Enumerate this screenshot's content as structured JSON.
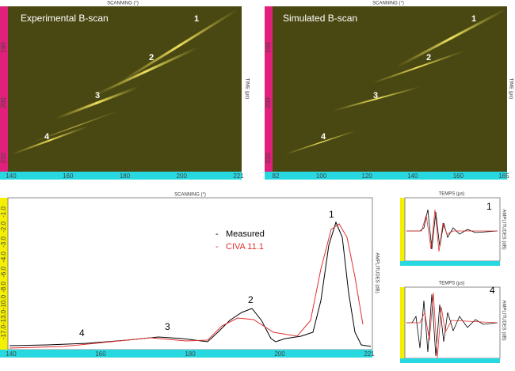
{
  "bscans": [
    {
      "axis_top": "SCANNING (°)",
      "axis_right": "TIME (µs)",
      "title": "Experimental B-scan",
      "xticks": [
        "140",
        "160",
        "180",
        "200",
        "221"
      ],
      "yticks": [
        "190",
        "200",
        "210"
      ],
      "markers": [
        "1",
        "2",
        "3",
        "4"
      ]
    },
    {
      "axis_top": "SCANNING (°)",
      "axis_right": "TIME (µs)",
      "title": "Simulated B-scan",
      "xticks": [
        "82",
        "100",
        "120",
        "140",
        "160",
        "165"
      ],
      "yticks": [
        "190",
        "200",
        "210"
      ],
      "markers": [
        "1",
        "2",
        "3",
        "4"
      ]
    }
  ],
  "profile": {
    "axis_top": "SCANNING (°)",
    "axis_right": "AMPLITUDES (dB)",
    "xticks": [
      "140",
      "160",
      "180",
      "200",
      "221"
    ],
    "yticks": [
      "-17.0",
      "-13.0",
      "-10.0",
      "-8.0",
      "-6.0",
      "-4.0",
      "-3.0",
      "-2.0",
      "-1.0"
    ],
    "legend": [
      "Measured",
      "CIVA 11.1"
    ],
    "markers": [
      "1",
      "2",
      "3",
      "4"
    ]
  },
  "signals": [
    {
      "axis_top": "TEMPS (µs)",
      "axis_right": "AMPLITUDES (dB)",
      "marker": "1"
    },
    {
      "axis_top": "TEMPS (µs)",
      "axis_right": "AMPLITUDES (dB)",
      "marker": "4"
    }
  ]
}
